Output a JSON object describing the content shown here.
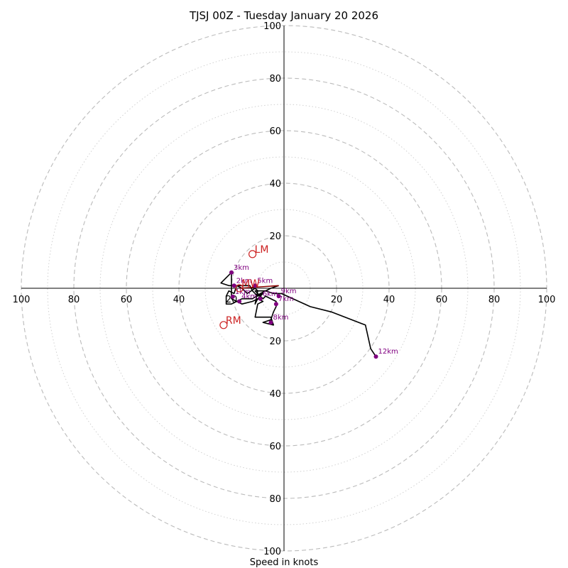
{
  "chart_data": {
    "type": "hodograph",
    "title": "TJSJ 00Z - Tuesday January 20 2026",
    "xlabel": "Speed in knots",
    "range": 100,
    "ring_step": 20,
    "minor_ring_step": 10,
    "x_tick_labels": [
      "100",
      "80",
      "60",
      "40",
      "20",
      "20",
      "40",
      "60",
      "80",
      "100"
    ],
    "y_tick_labels": [
      "100",
      "80",
      "60",
      "40",
      "20",
      "20",
      "40",
      "60",
      "80",
      "100"
    ],
    "hodograph_series": {
      "name": "wind profile",
      "color": "#000000",
      "points": [
        [
          -2,
          1
        ],
        [
          -5,
          0
        ],
        [
          -9,
          -2
        ],
        [
          -12,
          -4
        ],
        [
          -16,
          -4
        ],
        [
          -18,
          -5
        ],
        [
          -20,
          -6
        ],
        [
          -22,
          -6
        ],
        [
          -22,
          -3
        ],
        [
          -21,
          -1
        ],
        [
          -19,
          -2
        ],
        [
          -18,
          1
        ],
        [
          -16,
          0
        ],
        [
          -14,
          -2
        ],
        [
          -11,
          0
        ],
        [
          -10,
          -1
        ],
        [
          -11,
          -6
        ],
        [
          -10,
          -4
        ],
        [
          -8,
          -2
        ],
        [
          -10,
          -3
        ],
        [
          -12,
          -1
        ],
        [
          -13,
          1
        ],
        [
          -17,
          1
        ],
        [
          -21,
          1
        ],
        [
          -24,
          2
        ],
        [
          -22,
          4
        ],
        [
          -20,
          6
        ],
        [
          -20,
          0
        ],
        [
          -20,
          -2
        ],
        [
          -20,
          -4
        ],
        [
          -18,
          -5
        ],
        [
          -16,
          -6
        ],
        [
          -12,
          -5
        ],
        [
          -10,
          -4
        ],
        [
          -8,
          -5
        ],
        [
          -10,
          -6
        ],
        [
          -11,
          -11
        ],
        [
          -5,
          -11
        ],
        [
          -4,
          -14
        ],
        [
          -8,
          -13
        ],
        [
          -5,
          -12
        ],
        [
          -4,
          -9
        ],
        [
          -3,
          -7
        ],
        [
          -3,
          -5
        ],
        [
          -7,
          -3
        ],
        [
          -8,
          -4
        ],
        [
          -11,
          -1
        ],
        [
          -7,
          -1
        ],
        [
          -4,
          -2
        ],
        [
          -2,
          -2
        ],
        [
          -1,
          -2
        ],
        [
          10,
          -7
        ],
        [
          18,
          -9
        ],
        [
          31,
          -14
        ],
        [
          33,
          -23
        ],
        [
          35,
          -26
        ]
      ]
    },
    "height_markers": [
      {
        "label": "1km",
        "u": -19.5,
        "v": -3.2
      },
      {
        "label": "2km",
        "u": -19,
        "v": 1
      },
      {
        "label": "3km",
        "u": -20,
        "v": 6
      },
      {
        "label": "4km",
        "u": -17,
        "v": -5
      },
      {
        "label": "5km",
        "u": -11,
        "v": 1
      },
      {
        "label": "6km",
        "u": -9,
        "v": -4
      },
      {
        "label": "7km",
        "u": -3,
        "v": -6
      },
      {
        "label": "8km",
        "u": -5,
        "v": -13
      },
      {
        "label": "9km",
        "u": -2,
        "v": -3
      },
      {
        "label": "12km",
        "u": 35,
        "v": -26
      }
    ],
    "storm_motions": [
      {
        "label": "LM",
        "u": -12,
        "v": 13
      },
      {
        "label": "MW",
        "u": -17,
        "v": 0
      },
      {
        "label": "RM",
        "u": -23,
        "v": -14
      }
    ],
    "colors": {
      "ring_major": "#bbbbbb",
      "ring_minor": "#cccccc",
      "axis": "#000000",
      "height_marker": "#800080",
      "storm_motion": "#cc2222",
      "mean_wind_segment": "#8b0000"
    }
  }
}
